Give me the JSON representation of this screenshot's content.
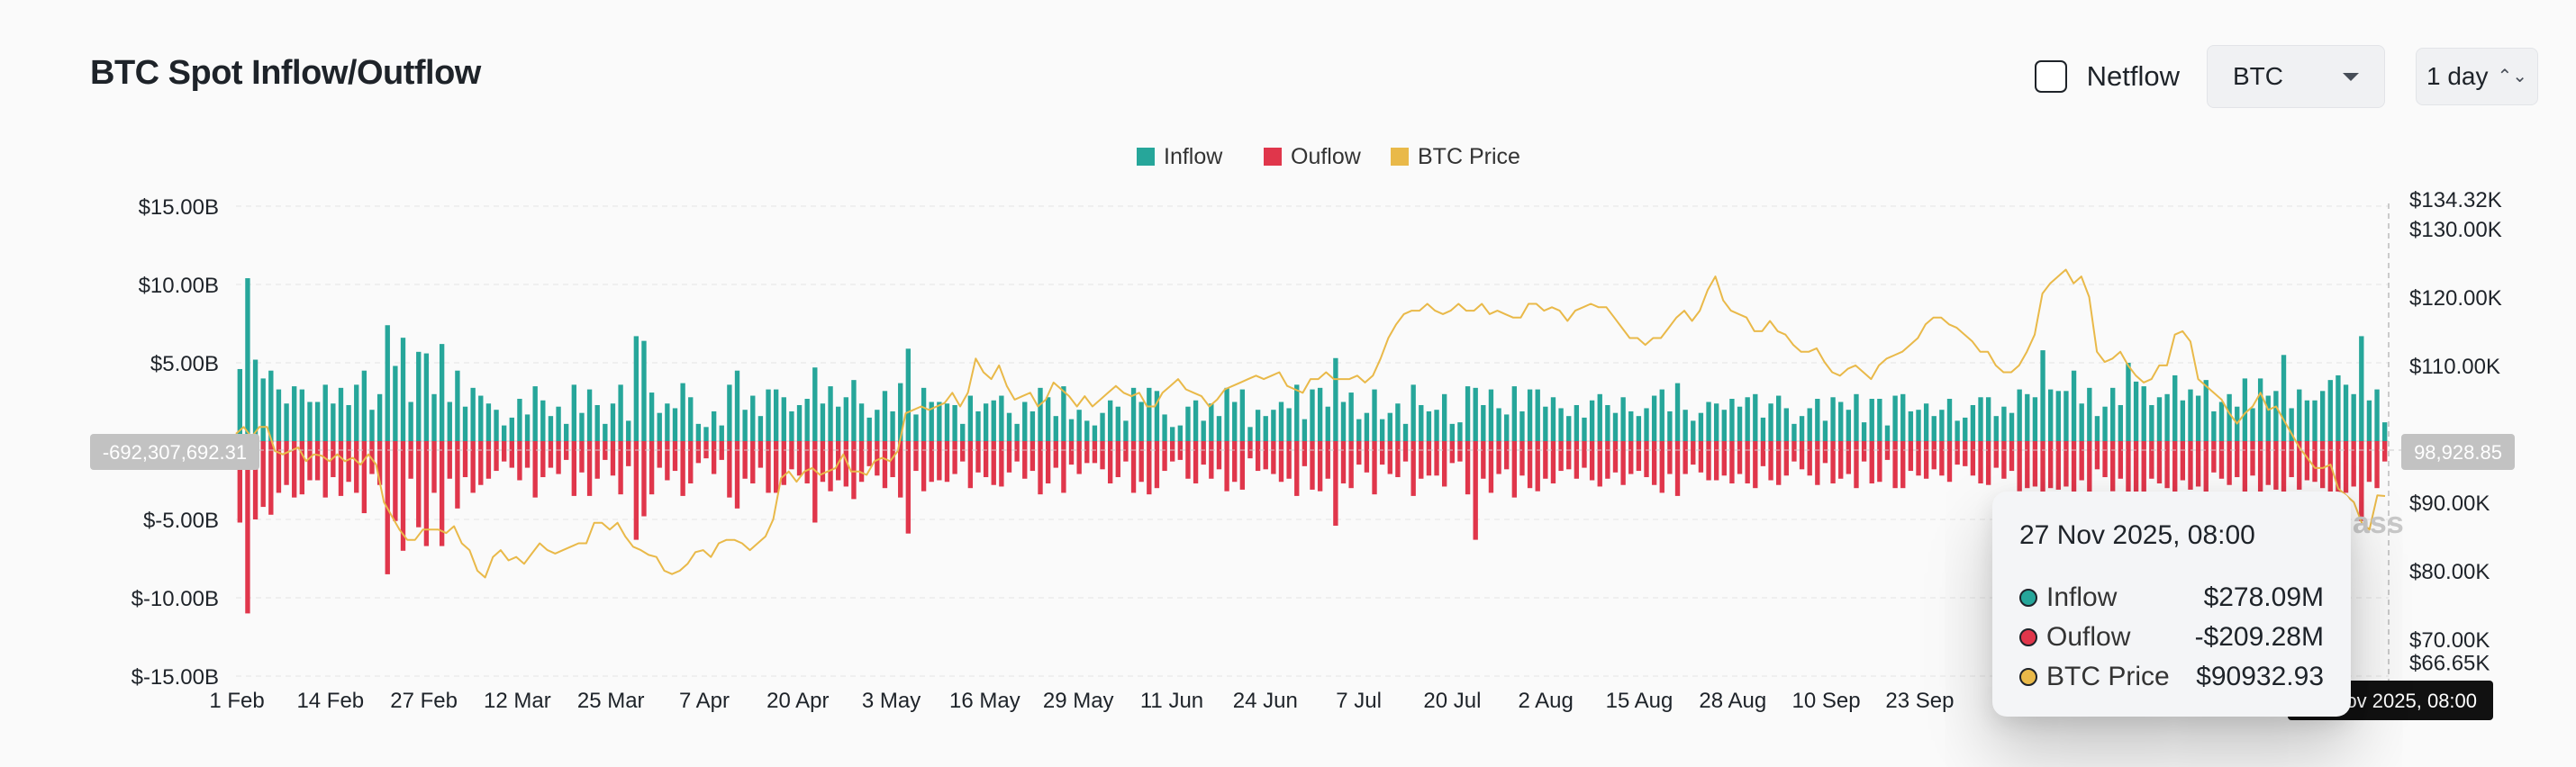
{
  "header": {
    "title": "BTC Spot Inflow/Outflow",
    "netflow_label": "Netflow",
    "asset_select": "BTC",
    "interval_select": "1 day",
    "updown_glyph": "⌃⌄"
  },
  "crosshair": {
    "left_value_label": "-692,307,692.31",
    "right_value_label": "98,928.85",
    "x_date_label": "27 Nov 2025, 08:00",
    "watermark": "ass"
  },
  "tooltip": {
    "date": "27 Nov 2025, 08:00",
    "rows": [
      {
        "name": "Inflow",
        "value": "$278.09M",
        "color": "#26a69a"
      },
      {
        "name": "Ouflow",
        "value": "-$209.28M",
        "color": "#e0364b"
      },
      {
        "name": "BTC Price",
        "value": "$90932.93",
        "color": "#e9b949"
      }
    ]
  },
  "chart_data": {
    "type": "bar",
    "legend": [
      {
        "name": "Inflow",
        "color": "#26a69a"
      },
      {
        "name": "Ouflow",
        "color": "#e0364b"
      },
      {
        "name": "BTC Price",
        "color": "#e9b949"
      }
    ],
    "legend_position": "top-center",
    "y_left": {
      "ticks": [
        "$15.00B",
        "$10.00B",
        "$5.00B",
        "$-5.00B",
        "$-10.00B",
        "$-15.00B"
      ],
      "tick_values": [
        15,
        10,
        5,
        -5,
        -10,
        -15
      ],
      "range": [
        -15,
        15
      ],
      "unit": "B USD"
    },
    "y_right": {
      "ticks": [
        "$134.32K",
        "$130.00K",
        "$120.00K",
        "$110.00K",
        "$90.00K",
        "$80.00K",
        "$70.00K",
        "$66.65K"
      ],
      "tick_values": [
        134.32,
        130,
        120,
        110,
        90,
        80,
        70,
        66.65
      ],
      "range": [
        66.65,
        134.32
      ],
      "unit": "K USD"
    },
    "x_ticks": [
      "1 Feb",
      "14 Feb",
      "27 Feb",
      "12 Mar",
      "25 Mar",
      "7 Apr",
      "20 Apr",
      "3 May",
      "16 May",
      "29 May",
      "11 Jun",
      "24 Jun",
      "7 Jul",
      "20 Jul",
      "2 Aug",
      "15 Aug",
      "28 Aug",
      "10 Sep",
      "23 Sep"
    ],
    "grid": true,
    "inflow_b": [
      4.6,
      10.4,
      5.2,
      4.0,
      4.5,
      3.3,
      2.4,
      3.5,
      3.3,
      2.5,
      2.5,
      3.6,
      2.4,
      3.4,
      2.3,
      3.6,
      4.5,
      2.0,
      3.0,
      7.4,
      4.8,
      6.6,
      2.5,
      5.7,
      5.6,
      3.0,
      6.2,
      2.5,
      4.5,
      2.2,
      3.4,
      2.9,
      2.4,
      2.0,
      1.0,
      1.5,
      2.7,
      1.7,
      3.5,
      2.6,
      1.6,
      2.2,
      1.1,
      3.6,
      1.8,
      3.3,
      2.3,
      1.1,
      2.4,
      3.6,
      1.3,
      6.7,
      6.4,
      3.1,
      1.8,
      2.4,
      2.1,
      3.7,
      2.8,
      1.1,
      0.9,
      1.9,
      1.0,
      3.6,
      4.5,
      2.0,
      2.9,
      1.6,
      3.3,
      3.3,
      2.8,
      1.9,
      2.3,
      2.7,
      4.7,
      2.4,
      3.5,
      2.2,
      2.8,
      3.9,
      2.4,
      1.5,
      2.0,
      3.2,
      1.9,
      3.7,
      5.9,
      1.7,
      3.4,
      2.5,
      2.5,
      2.4,
      2.3,
      1.1,
      2.9,
      1.9,
      2.4,
      2.6,
      2.9,
      1.8,
      1.1,
      2.5,
      1.9,
      3.4,
      2.8,
      1.6,
      3.5,
      1.4,
      2.0,
      1.3,
      1.0,
      1.8,
      2.6,
      2.2,
      1.3,
      3.4,
      2.5,
      3.4,
      3.2,
      1.7,
      0.9,
      1.0,
      2.2,
      2.6,
      1.3,
      2.4,
      1.6,
      3.4,
      2.5,
      3.3,
      0.9,
      2.0,
      1.6,
      2.0,
      2.5,
      2.1,
      3.6,
      1.4,
      3.3,
      3.4,
      2.2,
      5.3,
      2.5,
      3.1,
      1.4,
      1.8,
      3.3,
      1.4,
      1.8,
      2.4,
      1.1,
      3.6,
      2.3,
      1.9,
      2.0,
      3.0,
      1.1,
      1.2,
      3.5,
      3.4,
      2.3,
      3.3,
      2.1,
      1.7,
      3.5,
      1.9,
      3.3,
      3.3,
      2.2,
      2.8,
      2.1,
      1.6,
      2.3,
      1.5,
      2.6,
      3.0,
      2.3,
      1.8,
      2.8,
      1.9,
      1.6,
      2.1,
      2.9,
      3.3,
      1.9,
      3.7,
      2.0,
      1.3,
      1.8,
      2.5,
      2.4,
      2.0,
      2.7,
      2.2,
      2.8,
      3.0,
      1.5,
      2.4,
      2.9,
      2.1,
      1.1,
      1.6,
      2.1,
      2.7,
      1.3,
      2.8,
      2.5,
      2.0,
      3.0,
      1.2,
      2.7,
      2.7,
      1.0,
      2.9,
      3.0,
      1.9,
      2.0,
      2.4,
      1.6,
      2.0,
      2.7,
      1.3,
      1.5,
      2.3,
      2.8,
      2.8,
      1.6,
      2.2,
      1.8,
      3.3,
      3.0,
      2.8,
      5.8,
      3.3,
      3.2,
      3.2,
      4.5,
      2.4,
      3.4,
      1.6,
      2.2,
      3.4,
      2.3,
      5.0,
      3.8,
      3.5,
      2.3,
      2.8,
      3.0,
      4.2,
      2.6,
      3.3,
      2.9,
      3.9,
      1.9,
      2.5,
      3.0,
      2.2,
      4.0,
      2.1,
      4.0,
      2.9,
      3.2,
      5.5,
      2.1,
      3.3,
      2.6,
      2.6,
      3.2,
      3.9,
      4.2,
      3.6,
      3.0,
      6.7,
      2.6,
      3.3,
      1.2
    ],
    "outflow_b": [
      -5.2,
      -11.0,
      -5.0,
      -4.2,
      -4.7,
      -3.3,
      -2.8,
      -3.6,
      -3.4,
      -2.5,
      -2.5,
      -3.6,
      -2.3,
      -3.5,
      -2.6,
      -3.3,
      -4.6,
      -2.1,
      -2.8,
      -8.5,
      -5.1,
      -7.0,
      -2.4,
      -5.5,
      -6.7,
      -3.3,
      -6.7,
      -2.4,
      -4.3,
      -2.3,
      -3.3,
      -2.8,
      -2.4,
      -1.9,
      -1.3,
      -1.7,
      -2.5,
      -1.7,
      -3.6,
      -2.3,
      -1.7,
      -2.1,
      -1.2,
      -3.5,
      -2.0,
      -3.5,
      -2.4,
      -1.2,
      -2.2,
      -3.4,
      -1.6,
      -6.3,
      -4.8,
      -3.4,
      -1.7,
      -2.5,
      -1.9,
      -3.5,
      -2.7,
      -1.4,
      -1.1,
      -2.1,
      -1.2,
      -3.6,
      -4.3,
      -2.4,
      -2.7,
      -1.7,
      -3.3,
      -3.3,
      -2.8,
      -1.8,
      -2.2,
      -2.7,
      -5.2,
      -2.6,
      -3.2,
      -2.5,
      -2.9,
      -3.7,
      -2.6,
      -1.6,
      -2.2,
      -3.0,
      -2.3,
      -3.6,
      -5.9,
      -1.9,
      -3.2,
      -2.6,
      -2.5,
      -2.6,
      -2.1,
      -1.3,
      -3.0,
      -2.0,
      -2.3,
      -2.8,
      -2.9,
      -2.0,
      -1.3,
      -2.4,
      -1.9,
      -3.4,
      -2.7,
      -1.7,
      -3.3,
      -1.5,
      -2.1,
      -1.4,
      -1.4,
      -1.8,
      -2.7,
      -2.3,
      -1.3,
      -3.3,
      -2.6,
      -3.4,
      -3.0,
      -1.9,
      -1.3,
      -1.2,
      -2.4,
      -2.7,
      -1.5,
      -2.4,
      -1.8,
      -3.2,
      -2.6,
      -3.1,
      -1.1,
      -1.9,
      -1.8,
      -2.1,
      -2.6,
      -2.4,
      -3.5,
      -1.6,
      -3.1,
      -3.2,
      -2.4,
      -5.4,
      -2.7,
      -3.0,
      -1.5,
      -2.0,
      -3.4,
      -1.5,
      -2.1,
      -2.3,
      -1.3,
      -3.5,
      -2.4,
      -2.2,
      -2.2,
      -2.9,
      -1.4,
      -1.3,
      -3.4,
      -6.3,
      -2.4,
      -3.3,
      -2.1,
      -1.8,
      -3.6,
      -2.2,
      -3.0,
      -3.2,
      -2.4,
      -2.7,
      -1.9,
      -1.8,
      -2.4,
      -1.7,
      -2.5,
      -2.9,
      -2.4,
      -2.0,
      -2.8,
      -2.1,
      -1.9,
      -2.3,
      -2.8,
      -3.3,
      -2.1,
      -3.5,
      -2.1,
      -1.5,
      -2.0,
      -2.5,
      -2.5,
      -2.2,
      -2.7,
      -2.1,
      -2.7,
      -3.0,
      -1.6,
      -2.5,
      -2.8,
      -2.2,
      -1.3,
      -1.8,
      -2.2,
      -2.8,
      -1.4,
      -2.7,
      -2.4,
      -2.1,
      -3.0,
      -1.3,
      -2.7,
      -2.6,
      -1.2,
      -3.0,
      -3.0,
      -1.9,
      -2.2,
      -2.4,
      -1.8,
      -2.2,
      -2.6,
      -1.5,
      -1.6,
      -2.2,
      -2.7,
      -2.8,
      -1.7,
      -2.4,
      -1.9,
      -3.2,
      -3.0,
      -2.9,
      -5.0,
      -3.0,
      -3.1,
      -2.9,
      -4.1,
      -2.5,
      -3.3,
      -1.8,
      -2.3,
      -3.2,
      -2.4,
      -4.2,
      -3.5,
      -3.3,
      -2.4,
      -2.7,
      -3.0,
      -3.8,
      -2.5,
      -3.1,
      -2.9,
      -3.5,
      -2.0,
      -2.4,
      -2.8,
      -2.3,
      -3.6,
      -2.2,
      -3.6,
      -2.8,
      -3.1,
      -4.6,
      -2.3,
      -3.1,
      -2.5,
      -2.6,
      -3.0,
      -3.5,
      -3.7,
      -3.3,
      -2.9,
      -5.1,
      -2.6,
      -3.0,
      -1.3
    ],
    "btc_price_k": [
      100,
      101,
      99.5,
      101,
      101,
      97.5,
      97,
      97.5,
      98,
      96,
      97,
      96.8,
      96,
      97,
      96,
      96.5,
      95.5,
      97,
      95.5,
      90,
      88,
      86,
      84.5,
      84.5,
      86,
      86,
      86,
      85.5,
      86.5,
      84,
      83,
      80,
      79,
      82,
      83,
      81.5,
      82,
      81,
      82.5,
      84,
      83,
      82.5,
      83,
      83.5,
      84,
      84,
      87,
      87,
      86,
      87,
      85,
      83.5,
      83,
      82.3,
      82,
      80,
      79.5,
      80,
      81,
      82.7,
      83,
      82,
      84,
      84.5,
      84.5,
      84,
      83,
      84,
      85,
      87.5,
      93.5,
      94.5,
      93,
      94.5,
      95,
      94,
      94.5,
      95,
      97,
      94.5,
      94.5,
      94,
      96,
      96.5,
      96,
      97.5,
      103,
      103.5,
      104,
      103.5,
      104,
      104.5,
      106,
      104,
      106,
      111,
      109,
      108,
      110,
      107,
      105,
      105.5,
      106,
      104,
      105,
      107.5,
      106.5,
      105.5,
      104,
      105.5,
      104,
      105,
      106,
      107,
      106,
      105.5,
      106,
      104,
      104,
      106,
      107,
      108,
      106.5,
      106,
      105.5,
      104,
      105,
      106.5,
      107,
      107.5,
      108,
      108.5,
      108,
      108.5,
      109,
      107,
      106.5,
      106,
      108,
      108,
      109,
      108,
      108,
      108,
      108.5,
      107.5,
      108.5,
      111,
      114,
      116,
      117.5,
      118,
      118,
      119,
      118,
      117.5,
      118,
      119,
      118,
      118,
      119,
      117.5,
      118,
      117.5,
      117,
      117,
      119,
      119,
      118,
      118.5,
      118,
      116.5,
      118,
      118.5,
      119,
      118.5,
      118.5,
      117,
      115.5,
      114,
      114,
      113,
      114,
      114,
      115.5,
      117,
      118,
      116.5,
      118,
      121,
      123,
      119.5,
      118,
      117.5,
      117,
      115,
      115,
      116.5,
      115,
      114.5,
      113,
      112,
      112,
      112.5,
      110.5,
      109,
      108.5,
      109.5,
      110,
      109,
      108,
      110,
      111,
      111.5,
      112,
      113,
      114,
      116,
      117,
      117,
      116,
      115.5,
      114.5,
      113.5,
      112,
      112,
      110,
      109,
      109,
      110,
      112,
      114.5,
      120.5,
      122,
      123,
      124,
      122,
      123,
      120,
      112,
      110.5,
      111,
      112,
      110,
      108.5,
      107.5,
      108,
      110,
      110,
      114.5,
      115,
      113.5,
      108,
      107,
      106,
      105,
      103,
      101.5,
      103,
      104,
      106,
      103.5,
      104,
      102,
      100,
      98,
      96.5,
      95,
      95,
      95.5,
      92,
      91,
      90,
      87,
      86,
      91,
      90.9
    ]
  }
}
